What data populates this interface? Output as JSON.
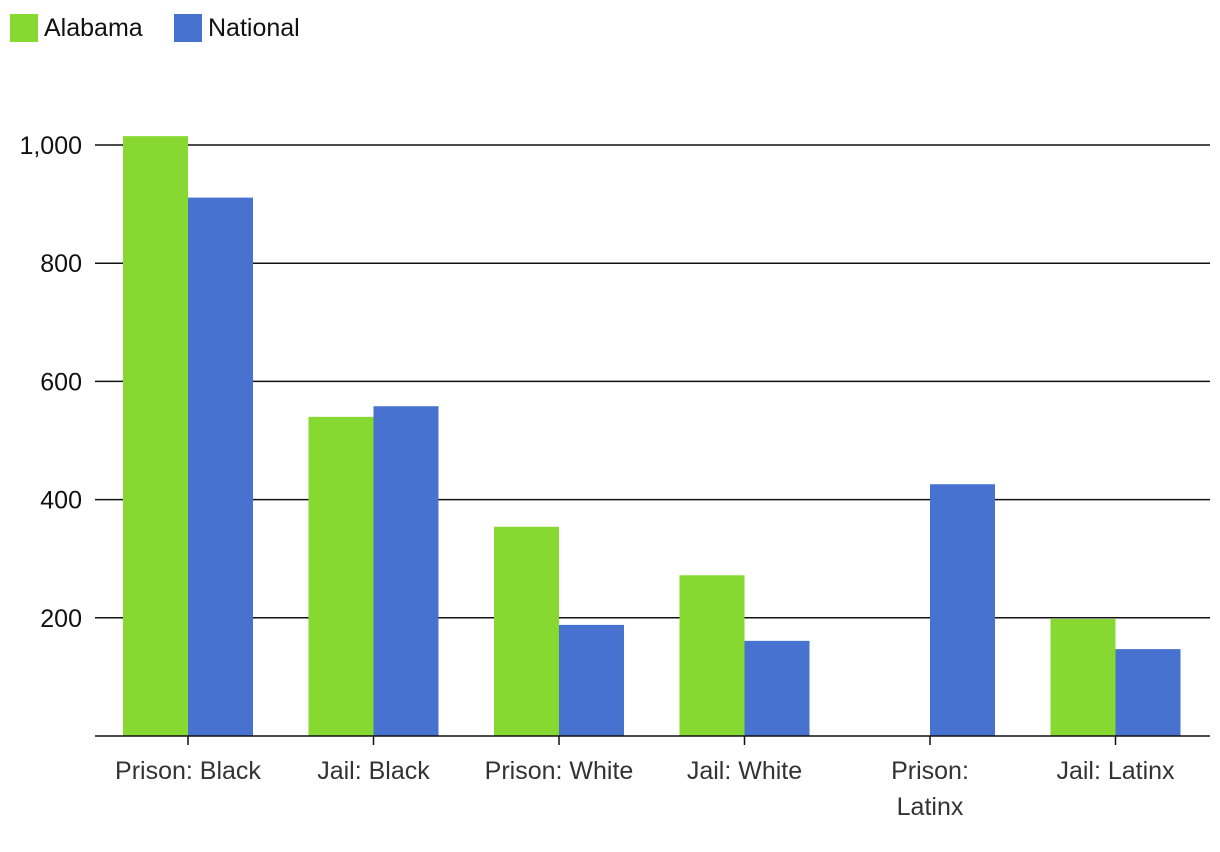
{
  "chart_data": {
    "type": "bar",
    "title": "",
    "xlabel": "",
    "ylabel": "",
    "categories": [
      "Prison: Black",
      "Jail: Black",
      "Prison: White",
      "Jail: White",
      "Prison: Latinx",
      "Jail: Latinx"
    ],
    "category_lines": [
      [
        "Prison: Black"
      ],
      [
        "Jail: Black"
      ],
      [
        "Prison: White"
      ],
      [
        "Jail: White"
      ],
      [
        "Prison:",
        "Latinx"
      ],
      [
        "Jail: Latinx"
      ]
    ],
    "series": [
      {
        "name": "Alabama",
        "color": "#88d832",
        "values": [
          1015,
          540,
          354,
          272,
          null,
          198
        ]
      },
      {
        "name": "National",
        "color": "#4872d0",
        "values": [
          911,
          558,
          188,
          161,
          426,
          147
        ]
      }
    ],
    "ylim": [
      0,
      1000
    ],
    "yticks": [
      200,
      400,
      600,
      800,
      1000
    ],
    "ytick_labels": [
      "200",
      "400",
      "600",
      "800",
      "1,000"
    ],
    "grid": true,
    "legend": "top-left"
  }
}
